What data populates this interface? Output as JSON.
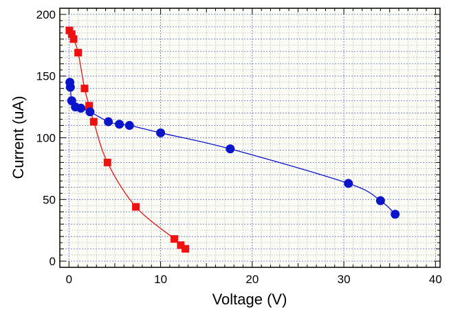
{
  "chart_data": {
    "type": "scatter",
    "title": "",
    "xlabel": "Voltage (V)",
    "ylabel": "Current (uA)",
    "xlim": [
      -1,
      40.5
    ],
    "ylim": [
      -5,
      205
    ],
    "xticks": [
      0,
      10,
      20,
      30,
      40
    ],
    "xtick_labels": [
      "0",
      "10",
      "20",
      "30",
      "40"
    ],
    "yticks": [
      0,
      50,
      100,
      150,
      200
    ],
    "ytick_labels": [
      "0",
      "50",
      "100",
      "150",
      "200"
    ],
    "grid": true,
    "legend": "none",
    "series": [
      {
        "marker": "square",
        "color": "#ee1111",
        "x": [
          0.05,
          0.3,
          0.5,
          1.0,
          1.7,
          2.2,
          2.7,
          4.2,
          7.3,
          11.5,
          12.2,
          12.7
        ],
        "y": [
          187,
          184,
          180,
          169,
          140,
          126,
          113,
          80,
          44,
          18,
          13,
          10
        ]
      },
      {
        "marker": "circle",
        "color": "#0a14c8",
        "x": [
          0.1,
          0.15,
          0.3,
          0.7,
          1.3,
          2.3,
          4.3,
          5.5,
          6.6,
          10.0,
          17.6,
          30.5,
          34.0,
          35.6
        ],
        "y": [
          145,
          141,
          130,
          125,
          124,
          121,
          113,
          111,
          110,
          104,
          91,
          63,
          49,
          38
        ]
      }
    ]
  }
}
